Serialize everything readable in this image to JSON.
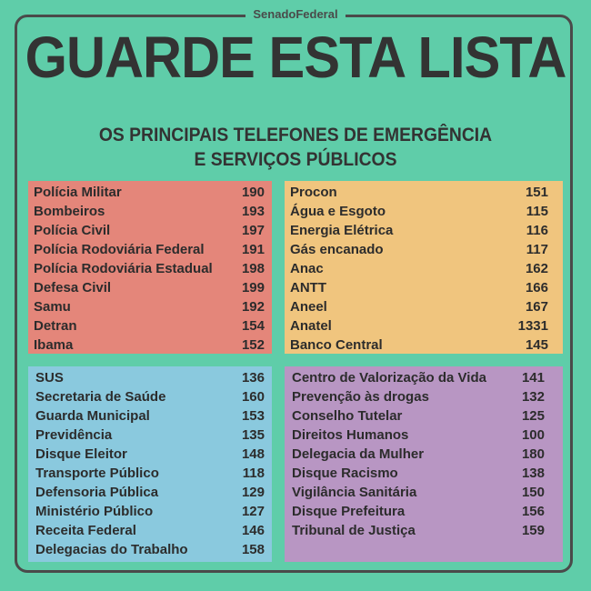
{
  "brand": "SenadoFederal",
  "title": "GUARDE ESTA LISTA",
  "subtitle_line1": "OS PRINCIPAIS TELEFONES DE EMERGÊNCIA",
  "subtitle_line2": "E SERVIÇOS PÚBLICOS",
  "colors": {
    "background": "#5fcda9",
    "red": "#e4867a",
    "orange": "#f0c57e",
    "blue": "#8ac9de",
    "purple": "#b896c3"
  },
  "red": [
    {
      "name": "Polícia Militar",
      "number": "190"
    },
    {
      "name": "Bombeiros",
      "number": "193"
    },
    {
      "name": "Polícia Civil",
      "number": "197"
    },
    {
      "name": "Polícia Rodoviária Federal",
      "number": "191"
    },
    {
      "name": "Polícia Rodoviária Estadual",
      "number": "198"
    },
    {
      "name": "Defesa Civil",
      "number": "199"
    },
    {
      "name": "Samu",
      "number": "192"
    },
    {
      "name": "Detran",
      "number": "154"
    },
    {
      "name": "Ibama",
      "number": "152"
    }
  ],
  "orange": [
    {
      "name": "Procon",
      "number": "151"
    },
    {
      "name": "Água e Esgoto",
      "number": "115"
    },
    {
      "name": "Energia Elétrica",
      "number": "116"
    },
    {
      "name": "Gás encanado",
      "number": "117"
    },
    {
      "name": "Anac",
      "number": "162"
    },
    {
      "name": "ANTT",
      "number": "166"
    },
    {
      "name": "Aneel",
      "number": "167"
    },
    {
      "name": "Anatel",
      "number": "1331"
    },
    {
      "name": "Banco Central",
      "number": "145"
    }
  ],
  "blue": [
    {
      "name": "SUS",
      "number": "136"
    },
    {
      "name": "Secretaria de Saúde",
      "number": "160"
    },
    {
      "name": "Guarda Municipal",
      "number": "153"
    },
    {
      "name": "Previdência",
      "number": "135"
    },
    {
      "name": "Disque Eleitor",
      "number": "148"
    },
    {
      "name": "Transporte Público",
      "number": "118"
    },
    {
      "name": "Defensoria Pública",
      "number": "129"
    },
    {
      "name": "Ministério Público",
      "number": "127"
    },
    {
      "name": "Receita Federal",
      "number": "146"
    },
    {
      "name": "Delegacias do Trabalho",
      "number": "158"
    }
  ],
  "purple": [
    {
      "name": "Centro de Valorização da Vida",
      "number": "141"
    },
    {
      "name": "Prevenção às drogas",
      "number": "132"
    },
    {
      "name": "Conselho Tutelar",
      "number": "125"
    },
    {
      "name": "Direitos Humanos",
      "number": "100"
    },
    {
      "name": "Delegacia da Mulher",
      "number": "180"
    },
    {
      "name": "Disque Racismo",
      "number": "138"
    },
    {
      "name": "Vigilância Sanitária",
      "number": "150"
    },
    {
      "name": "Disque Prefeitura",
      "number": "156"
    },
    {
      "name": "Tribunal de Justiça",
      "number": "159"
    }
  ]
}
